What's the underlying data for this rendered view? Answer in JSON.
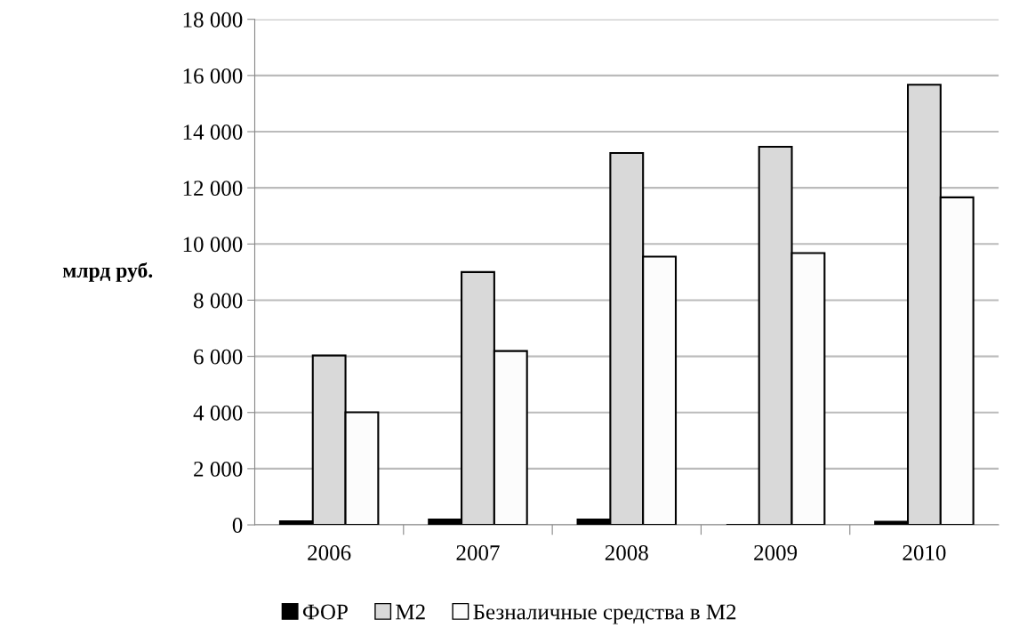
{
  "chart_data": {
    "type": "bar",
    "ylabel": "млрд руб.",
    "categories": [
      "2006",
      "2007",
      "2008",
      "2009",
      "2010"
    ],
    "series": [
      {
        "name": "ФОР",
        "color": "#000000",
        "values": [
          130,
          190,
          190,
          0,
          110
        ]
      },
      {
        "name": "М2",
        "color": "#d9d9d9",
        "values": [
          6030,
          9000,
          13240,
          13460,
          15670
        ]
      },
      {
        "name": "Безналичные средства в М2",
        "color": "#fcfcfc",
        "values": [
          4010,
          6190,
          9550,
          9680,
          11660
        ]
      }
    ],
    "ylim": [
      0,
      18000
    ],
    "yticks": [
      {
        "value": 0,
        "label": "0"
      },
      {
        "value": 2000,
        "label": "2 000"
      },
      {
        "value": 4000,
        "label": "4 000"
      },
      {
        "value": 6000,
        "label": "6 000"
      },
      {
        "value": 8000,
        "label": "8 000"
      },
      {
        "value": 10000,
        "label": "10 000"
      },
      {
        "value": 12000,
        "label": "12 000"
      },
      {
        "value": 14000,
        "label": "14 000"
      },
      {
        "value": 16000,
        "label": "16 000"
      },
      {
        "value": 18000,
        "label": "18 000"
      }
    ],
    "grid": "y",
    "legend": "bottom"
  }
}
